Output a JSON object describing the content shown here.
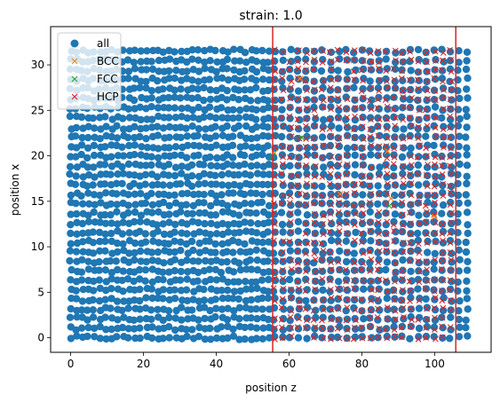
{
  "chart_data": {
    "type": "scatter",
    "title": "strain: 1.0",
    "xlabel": "position z",
    "ylabel": "position x",
    "xlim": [
      -5.5,
      115.5
    ],
    "ylim": [
      -1.6,
      34.2
    ],
    "xticks": [
      0,
      20,
      40,
      60,
      80,
      100
    ],
    "yticks": [
      0,
      5,
      10,
      15,
      20,
      25,
      30
    ],
    "grid": false,
    "legend_position": "upper-left",
    "vlines": [
      {
        "x": 55.5,
        "color": "#d62728"
      },
      {
        "x": 105.8,
        "color": "#d62728"
      }
    ],
    "series": [
      {
        "name": "all",
        "marker": "circle",
        "color": "#1f77b4",
        "region": {
          "x": [
            0,
            110
          ],
          "y": [
            0,
            32.5
          ]
        },
        "x_spacing_left": 1.6,
        "x_spacing_right": 2.2,
        "y_spacing": 1.05
      },
      {
        "name": "BCC",
        "marker": "x",
        "color": "#ff7f0e",
        "points": [
          [
            56,
            20.3
          ],
          [
            63,
            28.5
          ],
          [
            87,
            20.5
          ],
          [
            88,
            15.3
          ],
          [
            100,
            13.3
          ],
          [
            74,
            15.8
          ]
        ]
      },
      {
        "name": "FCC",
        "marker": "x",
        "color": "#2ca02c",
        "points": [
          [
            55.5,
            20.0
          ],
          [
            63.5,
            22.0
          ],
          [
            87.5,
            14.5
          ]
        ]
      },
      {
        "name": "HCP",
        "marker": "x",
        "color": "#d62728",
        "region": {
          "x": [
            56,
            106
          ],
          "y": [
            0,
            32.5
          ]
        },
        "x_spacing": 2.2,
        "y_spacing": 1.05
      }
    ]
  }
}
